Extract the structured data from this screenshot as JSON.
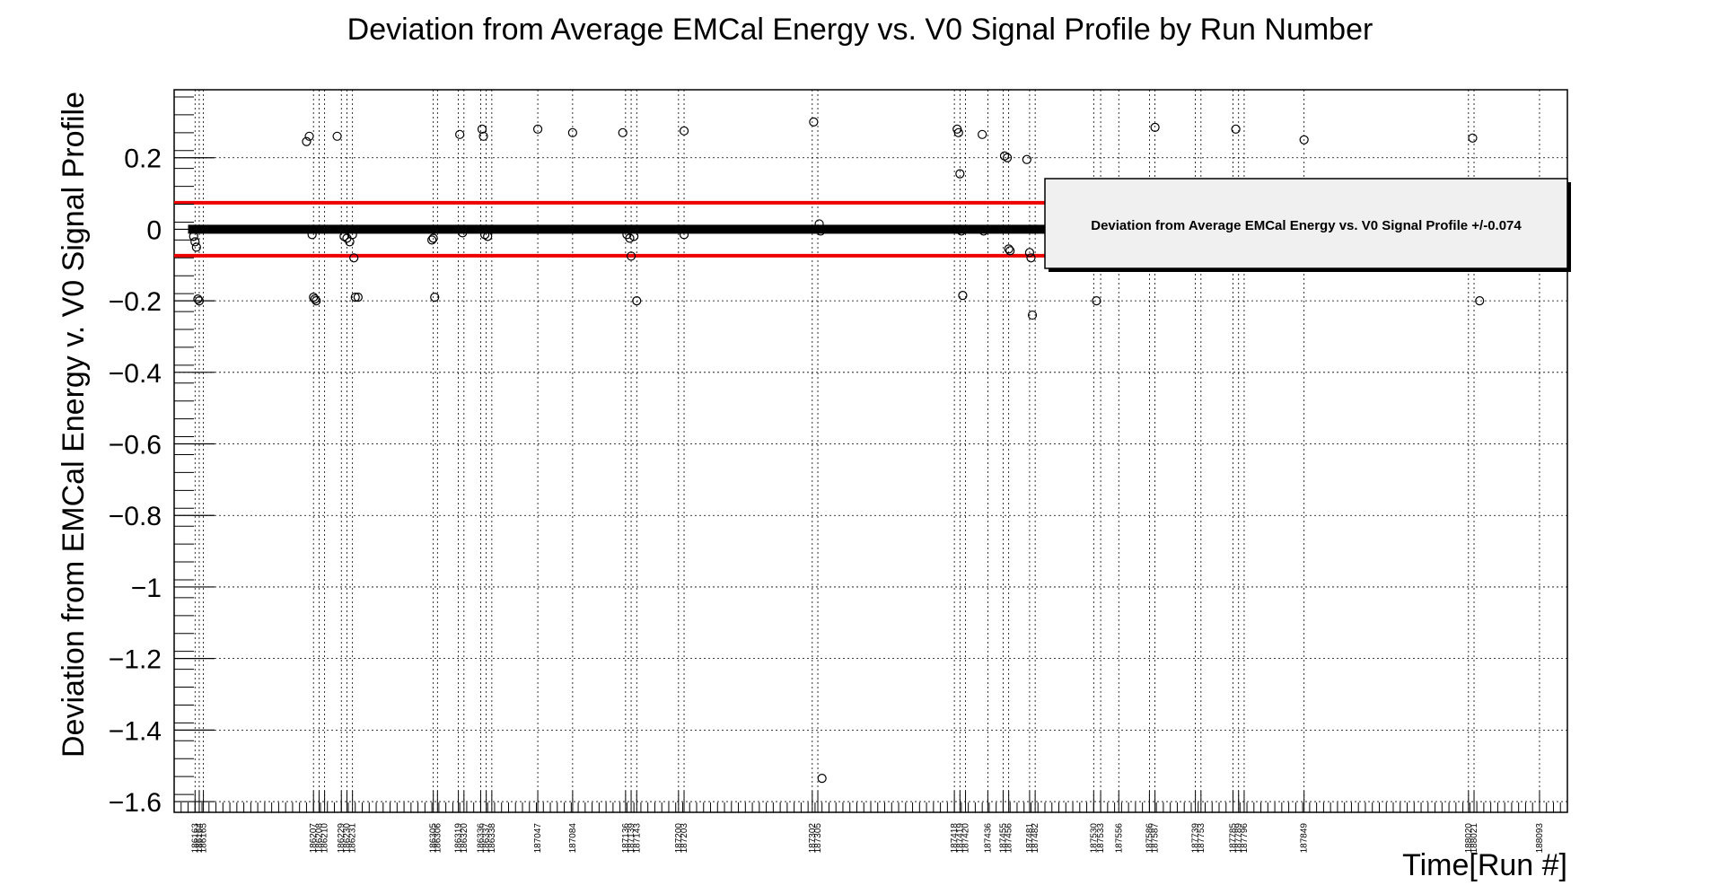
{
  "chart_data": {
    "type": "scatter",
    "title": "Deviation from Average EMCal Energy vs. V0 Signal Profile by Run Number",
    "xlabel": "Time[Run #]",
    "ylabel": "Deviation from EMCal Energy v. V0 Signal Profile",
    "ylim": [
      -1.63,
      0.39
    ],
    "xlim": [
      0,
      100
    ],
    "grid": true,
    "legend_text": "Deviation from Average EMCal Energy vs. V0 Signal Profile +/-0.074",
    "legend_position": "top-right",
    "threshold": 0.074,
    "colors": {
      "threshold_line": "#ee0000",
      "markers": "#000000",
      "legend_bg": "#f0f0f0"
    },
    "y_ticks": [
      {
        "value": 0.2,
        "label": "0.2"
      },
      {
        "value": 0,
        "label": "0"
      },
      {
        "value": -0.2,
        "label": "−0.2"
      },
      {
        "value": -0.4,
        "label": "−0.4"
      },
      {
        "value": -0.6,
        "label": "−0.6"
      },
      {
        "value": -0.8,
        "label": "−0.8"
      },
      {
        "value": -1.0,
        "label": "−1"
      },
      {
        "value": -1.2,
        "label": "−1.2"
      },
      {
        "value": -1.4,
        "label": "−1.4"
      },
      {
        "value": -1.6,
        "label": "−1.6"
      }
    ],
    "x_ticks": [
      {
        "x": 1.5,
        "label": "186163"
      },
      {
        "x": 1.8,
        "label": "186164"
      },
      {
        "x": 2.1,
        "label": "186165"
      },
      {
        "x": 10.0,
        "label": "186207"
      },
      {
        "x": 10.4,
        "label": "186208"
      },
      {
        "x": 10.8,
        "label": "186210"
      },
      {
        "x": 12.0,
        "label": "186229"
      },
      {
        "x": 12.4,
        "label": "186230"
      },
      {
        "x": 12.8,
        "label": "186231"
      },
      {
        "x": 18.6,
        "label": "186305"
      },
      {
        "x": 18.9,
        "label": "186306"
      },
      {
        "x": 20.4,
        "label": "186319"
      },
      {
        "x": 20.8,
        "label": "186320"
      },
      {
        "x": 22.0,
        "label": "186336"
      },
      {
        "x": 22.4,
        "label": "186337"
      },
      {
        "x": 22.8,
        "label": "186338"
      },
      {
        "x": 26.1,
        "label": "187047"
      },
      {
        "x": 28.6,
        "label": "187084"
      },
      {
        "x": 32.4,
        "label": "187136"
      },
      {
        "x": 32.8,
        "label": "187139"
      },
      {
        "x": 33.2,
        "label": "187143"
      },
      {
        "x": 36.2,
        "label": "187200"
      },
      {
        "x": 36.6,
        "label": "187203"
      },
      {
        "x": 45.8,
        "label": "187302"
      },
      {
        "x": 46.2,
        "label": "187305"
      },
      {
        "x": 56.0,
        "label": "187418"
      },
      {
        "x": 56.4,
        "label": "187419"
      },
      {
        "x": 56.8,
        "label": "187420"
      },
      {
        "x": 58.4,
        "label": "187436"
      },
      {
        "x": 59.5,
        "label": "187455"
      },
      {
        "x": 59.9,
        "label": "187456"
      },
      {
        "x": 61.4,
        "label": "187481"
      },
      {
        "x": 61.8,
        "label": "187482"
      },
      {
        "x": 66.0,
        "label": "187530"
      },
      {
        "x": 66.5,
        "label": "187533"
      },
      {
        "x": 67.8,
        "label": "187556"
      },
      {
        "x": 70.0,
        "label": "187586"
      },
      {
        "x": 70.4,
        "label": "187587"
      },
      {
        "x": 73.3,
        "label": "187739"
      },
      {
        "x": 73.7,
        "label": "187753"
      },
      {
        "x": 76.0,
        "label": "187785"
      },
      {
        "x": 76.4,
        "label": "187789"
      },
      {
        "x": 76.8,
        "label": "187796"
      },
      {
        "x": 81.1,
        "label": "187849"
      },
      {
        "x": 92.9,
        "label": "188020"
      },
      {
        "x": 93.3,
        "label": "188021"
      },
      {
        "x": 98.0,
        "label": "188093"
      }
    ],
    "points": [
      {
        "x": 1.4,
        "y": -0.02
      },
      {
        "x": 1.5,
        "y": -0.035
      },
      {
        "x": 1.6,
        "y": -0.05
      },
      {
        "x": 1.7,
        "y": -0.195
      },
      {
        "x": 1.8,
        "y": -0.2
      },
      {
        "x": 9.5,
        "y": 0.245
      },
      {
        "x": 9.7,
        "y": 0.26
      },
      {
        "x": 9.9,
        "y": -0.015
      },
      {
        "x": 10.0,
        "y": -0.19
      },
      {
        "x": 10.1,
        "y": -0.195
      },
      {
        "x": 10.2,
        "y": -0.2
      },
      {
        "x": 11.7,
        "y": 0.26
      },
      {
        "x": 12.2,
        "y": -0.02
      },
      {
        "x": 12.4,
        "y": -0.025
      },
      {
        "x": 12.6,
        "y": -0.035
      },
      {
        "x": 12.8,
        "y": -0.015
      },
      {
        "x": 12.9,
        "y": -0.08
      },
      {
        "x": 13.0,
        "y": -0.19
      },
      {
        "x": 13.2,
        "y": -0.19
      },
      {
        "x": 18.5,
        "y": -0.03
      },
      {
        "x": 18.6,
        "y": -0.025
      },
      {
        "x": 18.7,
        "y": -0.19
      },
      {
        "x": 20.5,
        "y": 0.265
      },
      {
        "x": 20.7,
        "y": -0.01
      },
      {
        "x": 22.1,
        "y": 0.28
      },
      {
        "x": 22.2,
        "y": 0.26
      },
      {
        "x": 22.3,
        "y": -0.015
      },
      {
        "x": 22.5,
        "y": -0.02
      },
      {
        "x": 26.1,
        "y": 0.28
      },
      {
        "x": 28.6,
        "y": 0.27
      },
      {
        "x": 32.2,
        "y": 0.27
      },
      {
        "x": 32.5,
        "y": -0.015
      },
      {
        "x": 32.7,
        "y": -0.025
      },
      {
        "x": 32.8,
        "y": -0.075
      },
      {
        "x": 33.0,
        "y": -0.02
      },
      {
        "x": 33.2,
        "y": -0.2
      },
      {
        "x": 36.6,
        "y": 0.275
      },
      {
        "x": 36.6,
        "y": -0.015
      },
      {
        "x": 45.9,
        "y": 0.3
      },
      {
        "x": 46.3,
        "y": 0.015
      },
      {
        "x": 46.4,
        "y": -0.005
      },
      {
        "x": 46.5,
        "y": -1.535
      },
      {
        "x": 56.2,
        "y": 0.28
      },
      {
        "x": 56.3,
        "y": 0.27
      },
      {
        "x": 56.4,
        "y": 0.155
      },
      {
        "x": 56.5,
        "y": -0.005
      },
      {
        "x": 56.6,
        "y": -0.185
      },
      {
        "x": 58.0,
        "y": 0.265
      },
      {
        "x": 58.1,
        "y": -0.005
      },
      {
        "x": 59.6,
        "y": 0.205
      },
      {
        "x": 59.8,
        "y": 0.2
      },
      {
        "x": 59.9,
        "y": -0.055
      },
      {
        "x": 60.0,
        "y": -0.06
      },
      {
        "x": 61.2,
        "y": 0.195
      },
      {
        "x": 61.4,
        "y": -0.065
      },
      {
        "x": 61.5,
        "y": -0.08
      },
      {
        "x": 61.6,
        "y": -0.24
      },
      {
        "x": 66.2,
        "y": -0.2
      },
      {
        "x": 70.4,
        "y": 0.285
      },
      {
        "x": 76.2,
        "y": 0.28
      },
      {
        "x": 81.1,
        "y": 0.25
      },
      {
        "x": 93.2,
        "y": 0.255
      },
      {
        "x": 93.7,
        "y": -0.2
      }
    ],
    "dense_band": [
      {
        "x_start": 1.0,
        "x_end": 66.0,
        "y": 0
      }
    ]
  }
}
